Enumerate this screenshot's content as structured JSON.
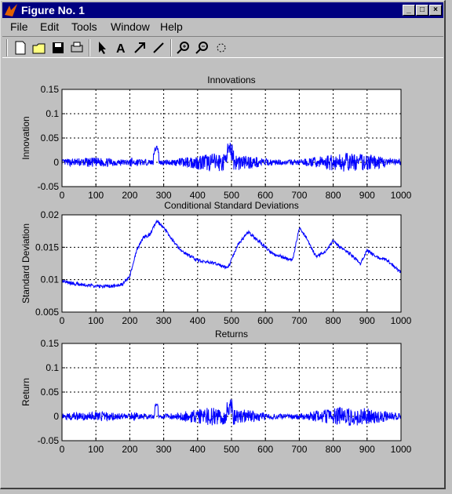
{
  "window": {
    "title": "Figure No. 1",
    "controls": [
      "minimize-button",
      "maximize-button",
      "close-button"
    ]
  },
  "menu": [
    "File",
    "Edit",
    "Tools",
    "Window",
    "Help"
  ],
  "toolbar": [
    "new-file-icon",
    "open-file-icon",
    "save-icon",
    "print-icon",
    "pointer-icon",
    "text-icon",
    "arrow-icon",
    "line-icon",
    "zoom-in-icon",
    "zoom-out-icon",
    "rotate-icon"
  ],
  "chart_data": [
    {
      "type": "line",
      "title": "Innovations",
      "ylabel": "Innovation",
      "xlim": [
        0,
        1000
      ],
      "ylim": [
        -0.05,
        0.15
      ],
      "yticks": [
        "-0.05",
        "0",
        "0.05",
        "0.1",
        "0.15"
      ],
      "xticks": [
        "0",
        "100",
        "200",
        "300",
        "400",
        "500",
        "600",
        "700",
        "800",
        "900",
        "1000"
      ],
      "grid": true,
      "color": "#0000ff",
      "series": [
        {
          "x": [
            0,
            50,
            100,
            150,
            200,
            250,
            280,
            300,
            350,
            400,
            450,
            500,
            550,
            600,
            650,
            700,
            750,
            800,
            850,
            900,
            950,
            1000
          ],
          "y": [
            0.002,
            -0.004,
            0.006,
            -0.007,
            0.01,
            -0.018,
            0.055,
            -0.03,
            0.02,
            -0.015,
            0.018,
            0.037,
            -0.02,
            0.015,
            -0.012,
            0.026,
            -0.025,
            0.02,
            -0.015,
            0.018,
            -0.012,
            0.01
          ]
        }
      ]
    },
    {
      "type": "line",
      "title": "Conditional Standard Deviations",
      "ylabel": "Standard Deviation",
      "xlim": [
        0,
        1000
      ],
      "ylim": [
        0.005,
        0.02
      ],
      "yticks": [
        "0.005",
        "0.01",
        "0.015",
        "0.02"
      ],
      "xticks": [
        "0",
        "100",
        "200",
        "300",
        "400",
        "500",
        "600",
        "700",
        "800",
        "900",
        "1000"
      ],
      "grid": true,
      "color": "#0000ff",
      "series": [
        {
          "x": [
            0,
            20,
            50,
            100,
            150,
            180,
            200,
            220,
            240,
            260,
            280,
            300,
            320,
            350,
            400,
            450,
            490,
            520,
            550,
            580,
            620,
            650,
            680,
            700,
            720,
            750,
            780,
            800,
            820,
            850,
            880,
            900,
            930,
            960,
            980,
            1000
          ],
          "y": [
            0.0099,
            0.0095,
            0.0093,
            0.009,
            0.009,
            0.0093,
            0.0105,
            0.0145,
            0.0165,
            0.017,
            0.0192,
            0.018,
            0.0165,
            0.0145,
            0.013,
            0.0125,
            0.0118,
            0.0155,
            0.0173,
            0.016,
            0.014,
            0.0135,
            0.013,
            0.018,
            0.0165,
            0.0135,
            0.0145,
            0.016,
            0.015,
            0.014,
            0.0125,
            0.0145,
            0.0135,
            0.013,
            0.012,
            0.011
          ]
        }
      ]
    },
    {
      "type": "line",
      "title": "Returns",
      "ylabel": "Return",
      "xlim": [
        0,
        1000
      ],
      "ylim": [
        -0.05,
        0.15
      ],
      "yticks": [
        "-0.05",
        "0",
        "0.05",
        "0.1",
        "0.15"
      ],
      "xticks": [
        "0",
        "100",
        "200",
        "300",
        "400",
        "500",
        "600",
        "700",
        "800",
        "900",
        "1000"
      ],
      "grid": true,
      "color": "#0000ff",
      "series": [
        {
          "x": [
            0,
            50,
            100,
            150,
            200,
            250,
            280,
            300,
            350,
            400,
            450,
            500,
            550,
            600,
            650,
            700,
            750,
            800,
            850,
            900,
            950,
            1000
          ],
          "y": [
            0.003,
            -0.004,
            0.006,
            -0.007,
            0.01,
            -0.02,
            0.045,
            -0.03,
            0.02,
            -0.015,
            0.018,
            0.035,
            -0.02,
            0.016,
            -0.012,
            0.03,
            -0.028,
            0.02,
            -0.015,
            0.02,
            -0.012,
            0.01
          ]
        }
      ]
    }
  ]
}
